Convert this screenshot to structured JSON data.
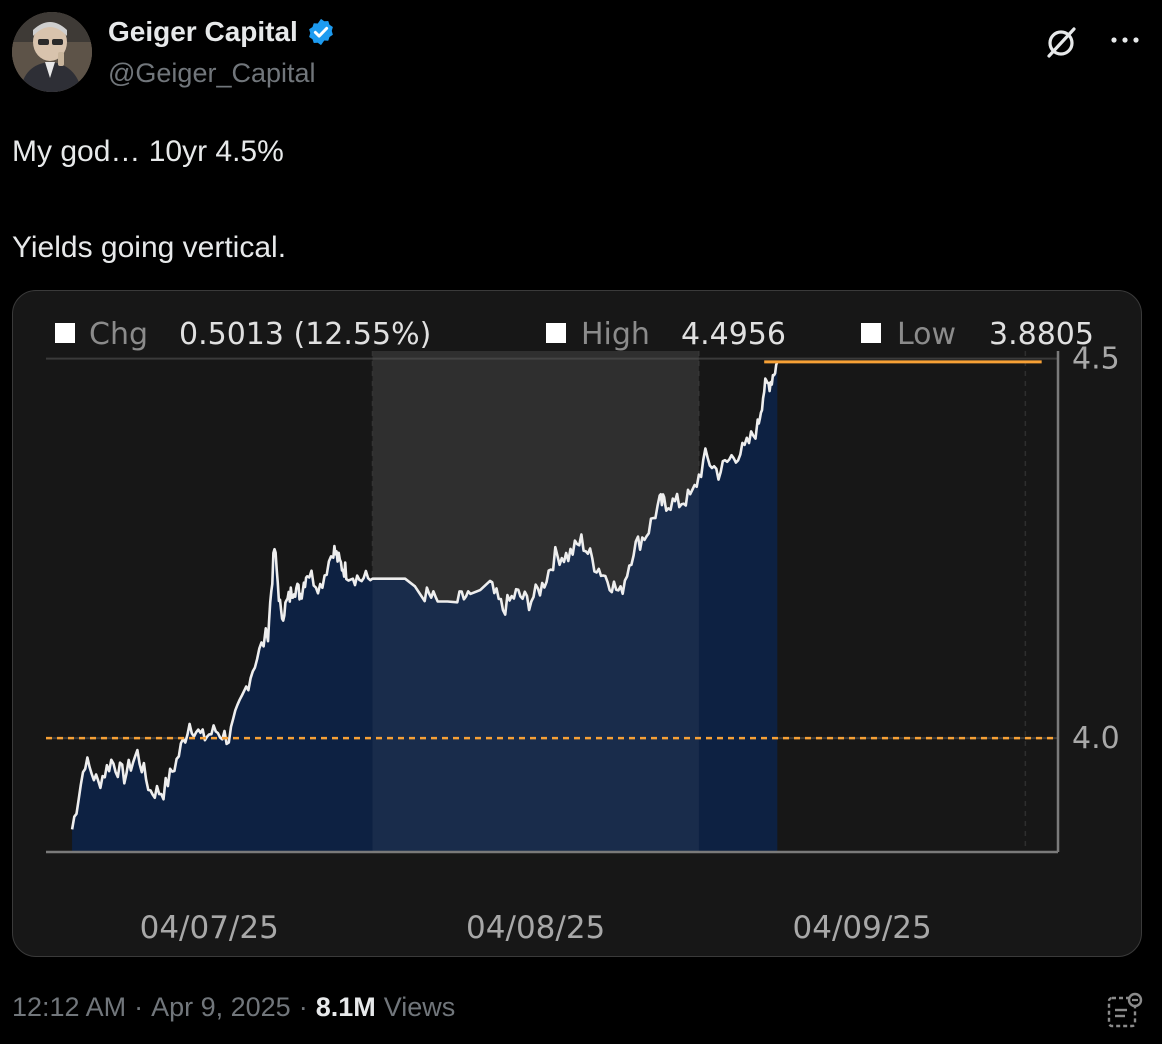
{
  "author": {
    "name": "Geiger Capital",
    "handle": "@Geiger_Capital",
    "verified": true,
    "avatar_icon": "person-photo-avatar"
  },
  "header_icons": [
    "grok-slash-circle-icon",
    "more-options-icon"
  ],
  "tweet": {
    "text": "My god… 10yr 4.5%\n\nYields going vertical."
  },
  "meta": {
    "time": "12:12 AM",
    "sep1": "·",
    "date": "Apr 9, 2025",
    "sep2": "·",
    "views_count": "8.1M",
    "views_label": "Views"
  },
  "colors": {
    "background": "#000000",
    "card": "#171717",
    "area_fill": "#0d2142",
    "line": "#eeeeee",
    "highlight_band": "#242424",
    "orange": "#f7a136",
    "verified_blue": "#1d9bf0"
  },
  "chart_data": {
    "type": "area",
    "legend": [
      {
        "label": "Chg",
        "value": "0.5013 (12.55%)"
      },
      {
        "label": "High",
        "value": "4.4956"
      },
      {
        "label": "Low",
        "value": "3.8805"
      }
    ],
    "ylim": [
      3.85,
      4.51
    ],
    "yticks": [
      {
        "value": 4.5,
        "label": "4.5"
      },
      {
        "value": 4.0,
        "label": "4.0"
      }
    ],
    "xlim": [
      0,
      3.1
    ],
    "xticks": [
      {
        "value": 0.5,
        "label": "04/07/25"
      },
      {
        "value": 1.5,
        "label": "04/08/25"
      },
      {
        "value": 2.5,
        "label": "04/09/25"
      }
    ],
    "highlight_band": [
      1.0,
      2.0
    ],
    "reference_line": 4.0,
    "last_value": 4.4956,
    "last_value_range": [
      2.2,
      3.05
    ],
    "series": [
      {
        "x": [
          0.08,
          0.12,
          0.16,
          0.2,
          0.24,
          0.28,
          0.32,
          0.36,
          0.4,
          0.44,
          0.48,
          0.52,
          0.56,
          0.6,
          0.64,
          0.68,
          0.7,
          0.72,
          0.74,
          0.76,
          0.78,
          0.8,
          0.84,
          0.88,
          0.9,
          0.92,
          0.96,
          1.0,
          1.1,
          1.16,
          1.2,
          1.26,
          1.3,
          1.36,
          1.4,
          1.44,
          1.48,
          1.52,
          1.56,
          1.6,
          1.64,
          1.68,
          1.72,
          1.76,
          1.8,
          1.84,
          1.88,
          1.9,
          1.94,
          1.98,
          2.02,
          2.06,
          2.1,
          2.14,
          2.18,
          2.2,
          2.22,
          2.24
        ],
        "y": [
          3.88,
          3.97,
          3.94,
          3.97,
          3.95,
          3.98,
          3.93,
          3.93,
          3.97,
          4.02,
          4.0,
          4.01,
          4.0,
          4.05,
          4.1,
          4.14,
          4.25,
          4.16,
          4.18,
          4.2,
          4.19,
          4.22,
          4.2,
          4.25,
          4.23,
          4.22,
          4.21,
          4.21,
          4.21,
          4.19,
          4.18,
          4.18,
          4.19,
          4.2,
          4.17,
          4.19,
          4.18,
          4.2,
          4.24,
          4.24,
          4.26,
          4.23,
          4.21,
          4.19,
          4.25,
          4.27,
          4.31,
          4.31,
          4.31,
          4.32,
          4.37,
          4.35,
          4.37,
          4.38,
          4.41,
          4.46,
          4.47,
          4.4956
        ]
      }
    ]
  }
}
